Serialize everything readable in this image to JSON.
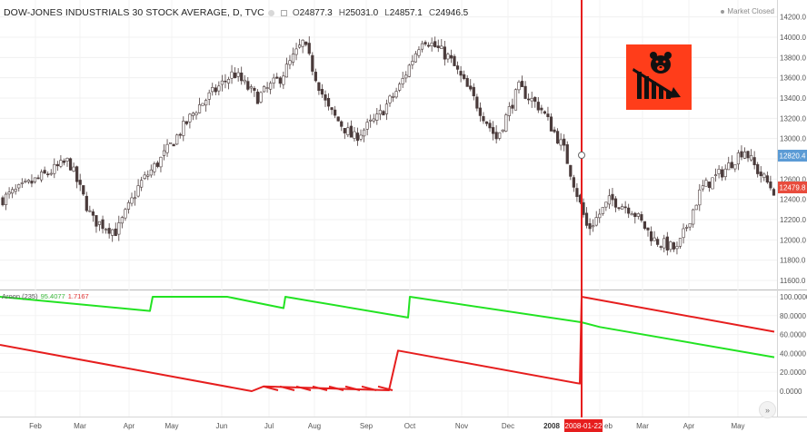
{
  "header": {
    "symbol": "DOW-JONES INDUSTRIALS 30 STOCK AVERAGE, D, TVC",
    "open_label": "O",
    "open_value": "24877.3",
    "high_label": "H",
    "high_value": "25031.0",
    "low_label": "L",
    "low_value": "24857.1",
    "close_label": "C",
    "close_value": "24946.5"
  },
  "market_status": "Market Closed",
  "indicator": {
    "name": "Aroon (235)",
    "up_value": "95.4077",
    "down_value": "1.7167"
  },
  "price_axis": {
    "ticks": [
      "14200.0",
      "14000.0",
      "13800.0",
      "13600.0",
      "13400.0",
      "13200.0",
      "13000.0",
      "12800.0",
      "12600.0",
      "12400.0",
      "12200.0",
      "12000.0",
      "11800.0",
      "11600.0"
    ],
    "badge_blue": "12820.4",
    "badge_red": "12479.8"
  },
  "indicator_axis": {
    "ticks": [
      "100.0000",
      "80.0000",
      "60.0000",
      "40.0000",
      "20.0000",
      "0.0000"
    ]
  },
  "time_axis": {
    "labels": [
      "Feb",
      "Mar",
      "Apr",
      "May",
      "Jun",
      "Jul",
      "Aug",
      "Sep",
      "Oct",
      "Nov",
      "Dec",
      "2008",
      "Feb",
      "Mar",
      "Apr",
      "May"
    ],
    "cursor_label": "2008-01-22"
  },
  "goto_button": "»",
  "colors": {
    "candle_up": "#ffffff",
    "candle_down": "#4a3b3b",
    "aroon_up": "#22e322",
    "aroon_down": "#e61e1e",
    "cursor": "#e61e1e",
    "badge_blue": "#5b9bd5",
    "badge_red": "#e84c3d",
    "logo_bg": "#ff3d1a"
  },
  "chart_data": [
    {
      "type": "candlestick",
      "title": "DOW-JONES INDUSTRIALS 30 STOCK AVERAGE, D, TVC",
      "ylim": [
        11450,
        14300
      ],
      "x_labels": [
        "Feb",
        "Mar",
        "Apr",
        "May",
        "Jun",
        "Jul",
        "Aug",
        "Sep",
        "Oct",
        "Nov",
        "Dec",
        "2008",
        "Feb",
        "Mar",
        "Apr",
        "May"
      ],
      "close_path": [
        [
          "Jan",
          12400
        ],
        [
          "Feb",
          12650
        ],
        [
          "Feb",
          12780
        ],
        [
          "Mar",
          12200
        ],
        [
          "Mar",
          12080
        ],
        [
          "Apr",
          12550
        ],
        [
          "Apr",
          12800
        ],
        [
          "May",
          13300
        ],
        [
          "Jun",
          13650
        ],
        [
          "Jun",
          13400
        ],
        [
          "Jul",
          13600
        ],
        [
          "Jul",
          13950
        ],
        [
          "Aug",
          13300
        ],
        [
          "Aug",
          13000
        ],
        [
          "Sep",
          13200
        ],
        [
          "Sep",
          13500
        ],
        [
          "Oct",
          14000
        ],
        [
          "Oct",
          13800
        ],
        [
          "Nov",
          13400
        ],
        [
          "Nov",
          13000
        ],
        [
          "Dec",
          13500
        ],
        [
          "Dec",
          13300
        ],
        [
          "2008",
          12900
        ],
        [
          "2008",
          12100
        ],
        [
          "Feb",
          12400
        ],
        [
          "Feb",
          12300
        ],
        [
          "Mar",
          12000
        ],
        [
          "Mar",
          11900
        ],
        [
          "Apr",
          12500
        ],
        [
          "Apr",
          12700
        ],
        [
          "May",
          12900
        ],
        [
          "May",
          12700
        ],
        [
          "May",
          12480
        ]
      ]
    },
    {
      "type": "line",
      "title": "Aroon (235)",
      "ylim": [
        0,
        100
      ],
      "series": [
        {
          "name": "Aroon Up",
          "points": [
            [
              "Jan",
              100
            ],
            [
              "Apr",
              85
            ],
            [
              "Apr",
              100
            ],
            [
              "Jun",
              100
            ],
            [
              "Jul",
              88
            ],
            [
              "Jul",
              100
            ],
            [
              "Sep",
              78
            ],
            [
              "Oct",
              100
            ],
            [
              "2008",
              73
            ],
            [
              "Feb",
              68
            ],
            [
              "May",
              36
            ]
          ]
        },
        {
          "name": "Aroon Down",
          "points": [
            [
              "Jan",
              49
            ],
            [
              "Jun",
              0
            ],
            [
              "Jul",
              5
            ],
            [
              "Sep",
              1
            ],
            [
              "Oct",
              43
            ],
            [
              "2008",
              8
            ],
            [
              "2008",
              100
            ],
            [
              "May",
              63
            ]
          ]
        }
      ]
    }
  ]
}
